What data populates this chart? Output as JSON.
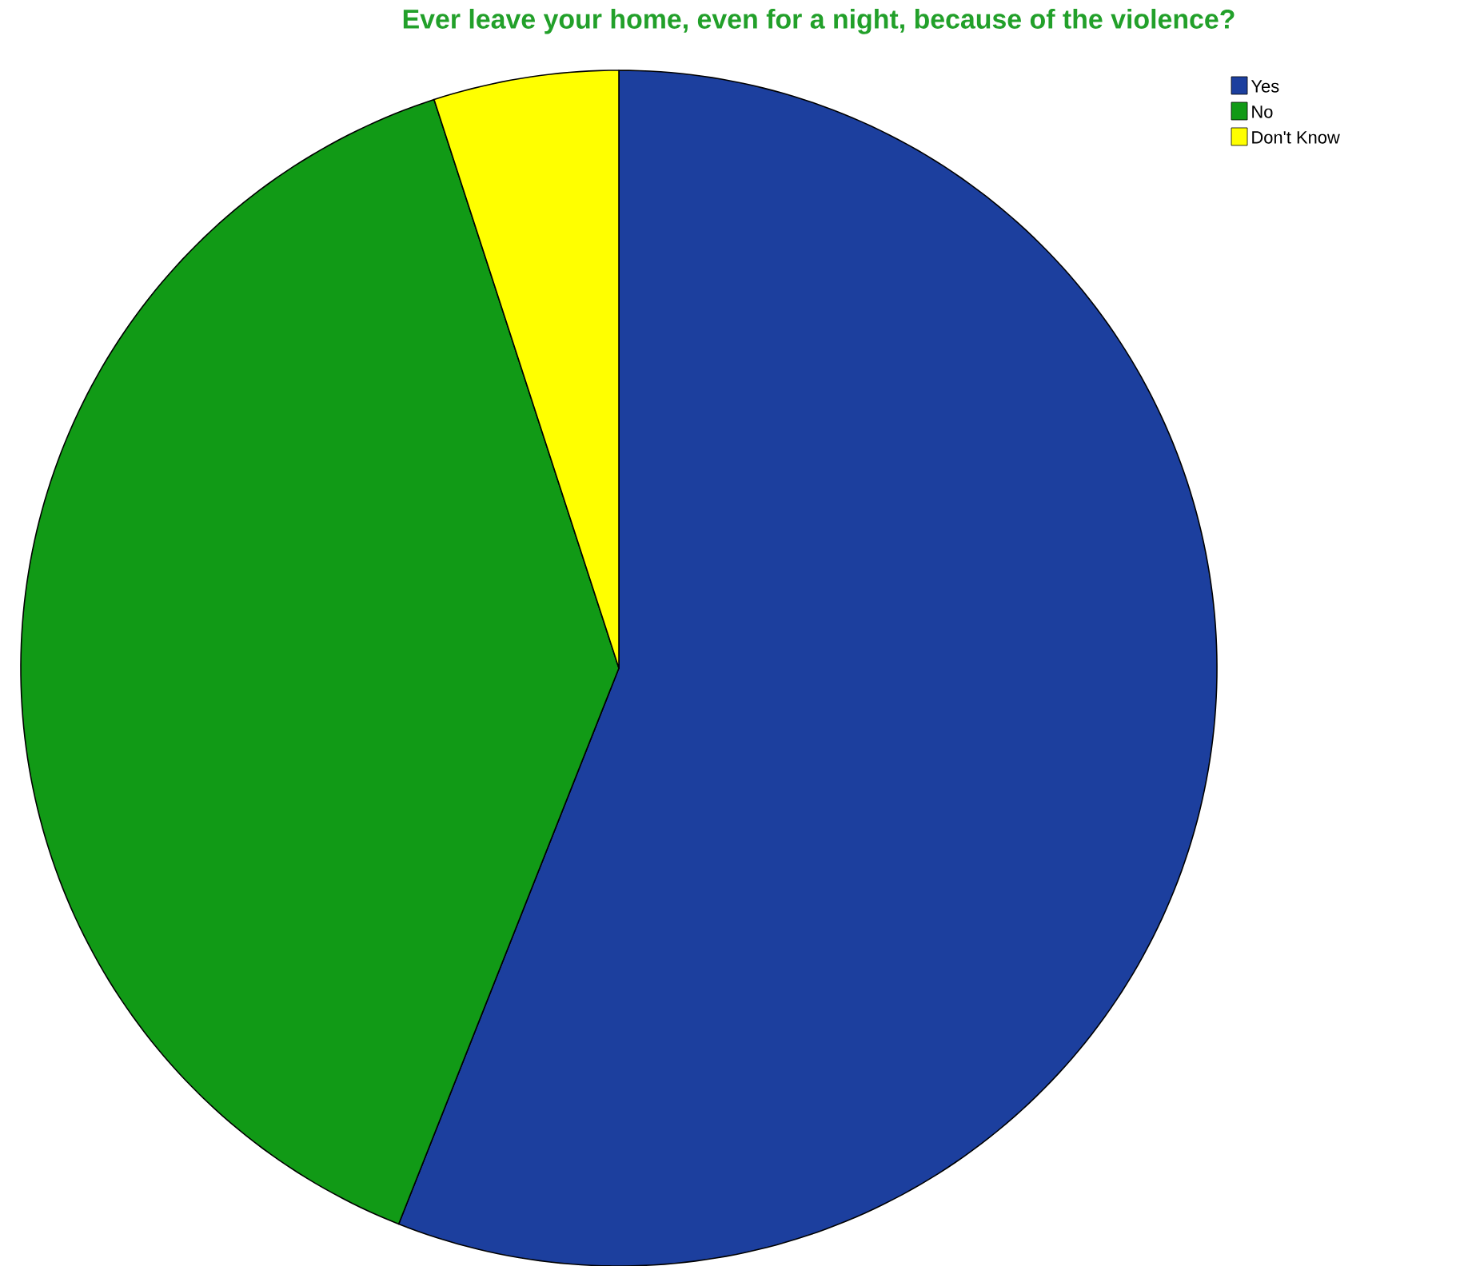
{
  "chart_data": {
    "type": "pie",
    "title": "Ever leave your home, even for a night, because of the violence?",
    "categories": [
      "Yes",
      "No",
      "Don't Know"
    ],
    "values": [
      56,
      39,
      5
    ],
    "colors": [
      "#1c3f9e",
      "#119a16",
      "#ffff00"
    ],
    "legend": "top right"
  }
}
